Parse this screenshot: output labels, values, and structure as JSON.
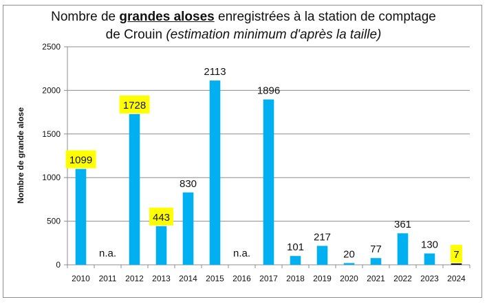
{
  "title": {
    "part1": "Nombre de ",
    "part_bold": "grandes aloses",
    "part2": " enregistrées à la station de comptage",
    "line2_plain": "de Crouin ",
    "line2_italic": "(estimation minimum d'après la taille)"
  },
  "chart_data": {
    "type": "bar",
    "title": "Nombre de grandes aloses enregistrées à la station de comptage de Crouin (estimation minimum d'après la taille)",
    "xlabel": "",
    "ylabel": "Nombre de grande alose",
    "ylim": [
      0,
      2500
    ],
    "yticks": [
      0,
      500,
      1000,
      1500,
      2000,
      2500
    ],
    "grid": true,
    "legend": "none",
    "bar_color": "#00B0F0",
    "highlight_label_color": "#FFFF00",
    "categories": [
      "2010",
      "2011",
      "2012",
      "2013",
      "2014",
      "2015",
      "2016",
      "2017",
      "2018",
      "2019",
      "2020",
      "2021",
      "2022",
      "2023",
      "2024"
    ],
    "values": [
      1099,
      null,
      1728,
      443,
      830,
      2113,
      null,
      1896,
      101,
      217,
      20,
      77,
      361,
      130,
      7
    ],
    "labels": [
      "1099",
      "n.a.",
      "1728",
      "443",
      "830",
      "2113",
      "n.a.",
      "1896",
      "101",
      "217",
      "20",
      "77",
      "361",
      "130",
      "7"
    ],
    "highlighted": [
      true,
      false,
      true,
      true,
      false,
      false,
      false,
      false,
      false,
      false,
      false,
      false,
      false,
      false,
      true
    ]
  }
}
